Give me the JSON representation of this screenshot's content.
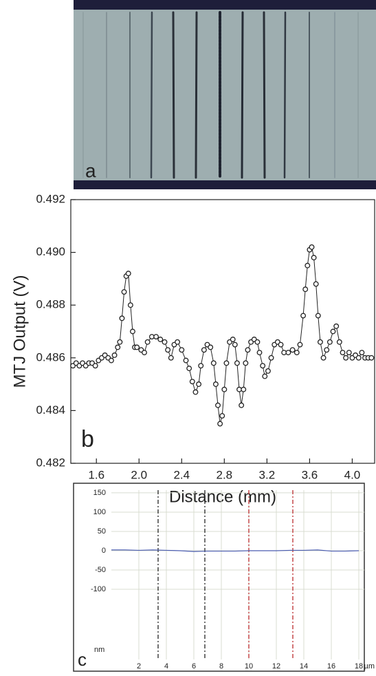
{
  "image": {
    "label": "a"
  },
  "chart_data": [
    {
      "type": "line",
      "annotation": "b",
      "x_label": "Distance (mm)",
      "y_label": "MTJ Output (V)",
      "xlim": [
        1.36,
        4.21
      ],
      "ylim": [
        0.482,
        0.492
      ],
      "xticks": [
        1.6,
        {
          "value": 2,
          "label": "2.0"
        },
        2.4,
        2.8,
        3.2,
        3.6,
        {
          "value": 4,
          "label": "4.0"
        }
      ],
      "yticks": [
        0.482,
        0.484,
        0.486,
        0.488,
        {
          "value": 0.49,
          "label": "0.490"
        },
        0.492
      ],
      "grid": false,
      "markers": "circle",
      "series": [
        {
          "color": "#222222",
          "x": [
            1.38,
            1.41,
            1.44,
            1.47,
            1.5,
            1.53,
            1.56,
            1.59,
            1.62,
            1.65,
            1.68,
            1.71,
            1.74,
            1.77,
            1.8,
            1.82,
            1.84,
            1.86,
            1.88,
            1.9,
            1.92,
            1.94,
            1.96,
            1.98,
            2.02,
            2.05,
            2.08,
            2.12,
            2.16,
            2.2,
            2.24,
            2.27,
            2.3,
            2.33,
            2.36,
            2.4,
            2.44,
            2.47,
            2.5,
            2.53,
            2.56,
            2.58,
            2.61,
            2.64,
            2.67,
            2.7,
            2.72,
            2.74,
            2.76,
            2.78,
            2.8,
            2.82,
            2.85,
            2.88,
            2.9,
            2.92,
            2.94,
            2.96,
            2.98,
            3.0,
            3.02,
            3.05,
            3.08,
            3.11,
            3.13,
            3.16,
            3.18,
            3.21,
            3.24,
            3.27,
            3.3,
            3.33,
            3.36,
            3.4,
            3.44,
            3.48,
            3.51,
            3.54,
            3.56,
            3.58,
            3.6,
            3.62,
            3.64,
            3.66,
            3.68,
            3.7,
            3.73,
            3.76,
            3.79,
            3.82,
            3.85,
            3.88,
            3.91,
            3.94,
            3.97,
            4.0,
            4.03,
            4.06,
            4.09,
            4.12,
            4.15,
            4.18
          ],
          "values": [
            0.4857,
            0.4858,
            0.4857,
            0.4858,
            0.4857,
            0.4858,
            0.4858,
            0.4857,
            0.4859,
            0.486,
            0.4861,
            0.486,
            0.4859,
            0.4861,
            0.4864,
            0.4866,
            0.4875,
            0.4885,
            0.4891,
            0.4892,
            0.488,
            0.487,
            0.4864,
            0.4864,
            0.4863,
            0.4862,
            0.4866,
            0.4868,
            0.4868,
            0.4867,
            0.4866,
            0.4863,
            0.486,
            0.4865,
            0.4866,
            0.4863,
            0.4859,
            0.4856,
            0.4851,
            0.4847,
            0.485,
            0.4857,
            0.4863,
            0.4865,
            0.4864,
            0.4858,
            0.485,
            0.4842,
            0.4835,
            0.4838,
            0.4848,
            0.4858,
            0.4866,
            0.4867,
            0.4865,
            0.4858,
            0.4848,
            0.4842,
            0.4848,
            0.4858,
            0.4863,
            0.4866,
            0.4867,
            0.4866,
            0.4862,
            0.4857,
            0.4853,
            0.4855,
            0.486,
            0.4865,
            0.4866,
            0.4865,
            0.4862,
            0.4862,
            0.4863,
            0.4862,
            0.4865,
            0.4876,
            0.4886,
            0.4895,
            0.4901,
            0.4902,
            0.4898,
            0.4888,
            0.4876,
            0.4866,
            0.486,
            0.4863,
            0.4866,
            0.487,
            0.4872,
            0.4866,
            0.4862,
            0.486,
            0.4862,
            0.486,
            0.4861,
            0.486,
            0.4862,
            0.486,
            0.486,
            0.486
          ]
        }
      ]
    },
    {
      "type": "line",
      "annotation": "c",
      "y_unit": "nm",
      "x_unit": "µm",
      "xlim": [
        0,
        18.4
      ],
      "ylim": [
        -282,
        157
      ],
      "xticks": [
        2,
        4,
        6,
        8,
        10,
        12,
        14,
        16,
        18
      ],
      "yticks": [
        -100,
        -50,
        0,
        50,
        100,
        150
      ],
      "grid": true,
      "cursors": [
        {
          "x": 3.4,
          "color": "#333333"
        },
        {
          "x": 6.8,
          "color": "#333333"
        },
        {
          "x": 10,
          "color": "#c0393b"
        },
        {
          "x": 13.2,
          "color": "#c0393b"
        }
      ],
      "series": [
        {
          "color": "#4a5cb0",
          "x": [
            0,
            1,
            2,
            3,
            4,
            5,
            6,
            7,
            8,
            9,
            10,
            11,
            12,
            13,
            14,
            15,
            16,
            17,
            18
          ],
          "values": [
            2,
            2,
            1,
            2,
            1,
            0,
            -2,
            -1,
            -1,
            -1,
            0,
            0,
            0,
            1,
            1,
            2,
            -1,
            -1,
            0
          ]
        }
      ]
    }
  ]
}
